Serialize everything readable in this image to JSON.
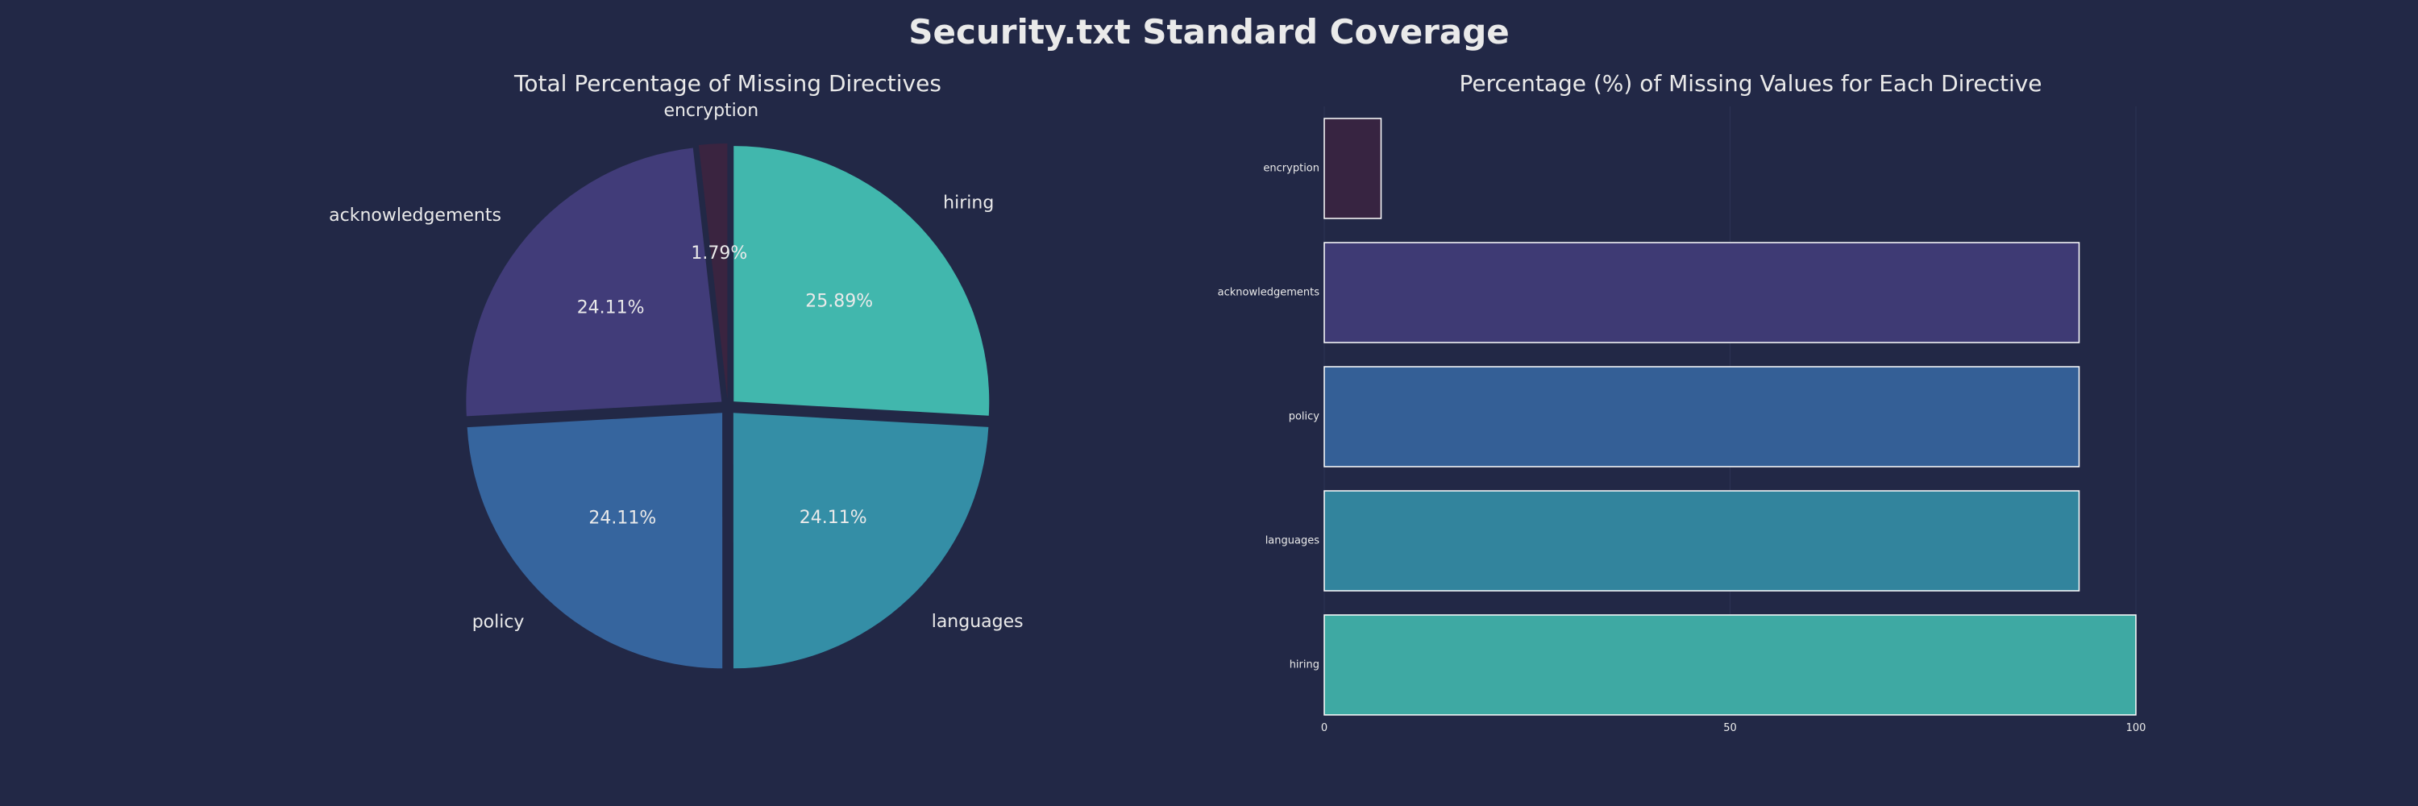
{
  "title": "Security.txt Standard Coverage",
  "colors": {
    "background": "#222846",
    "text": "#eaeaea",
    "grid": "#2c3354",
    "bar_edge": "#ffffff",
    "encryption": "#3a2440",
    "acknowledgements": "#413c79",
    "policy": "#36659e",
    "languages": "#348ea6",
    "hiring": "#41b7ad"
  },
  "chart_data": [
    {
      "type": "pie",
      "title": "Total Percentage of Missing Directives",
      "labels": [
        "hiring",
        "languages",
        "policy",
        "acknowledgements",
        "encryption"
      ],
      "values": [
        25.89,
        24.11,
        24.11,
        24.11,
        1.79
      ],
      "value_labels": [
        "25.89%",
        "24.11%",
        "24.11%",
        "24.11%",
        "1.79%"
      ],
      "start_angle_deg": 90,
      "direction": "clockwise",
      "exploded": true
    },
    {
      "type": "bar",
      "orientation": "horizontal",
      "title": "Percentage (%) of Missing Values for Each Directive",
      "categories": [
        "encryption",
        "acknowledgements",
        "policy",
        "languages",
        "hiring"
      ],
      "values": [
        7,
        93,
        93,
        93,
        100
      ],
      "xlim": [
        0,
        100
      ],
      "xticks": [
        "0",
        "50",
        "100"
      ],
      "grid": true
    }
  ]
}
